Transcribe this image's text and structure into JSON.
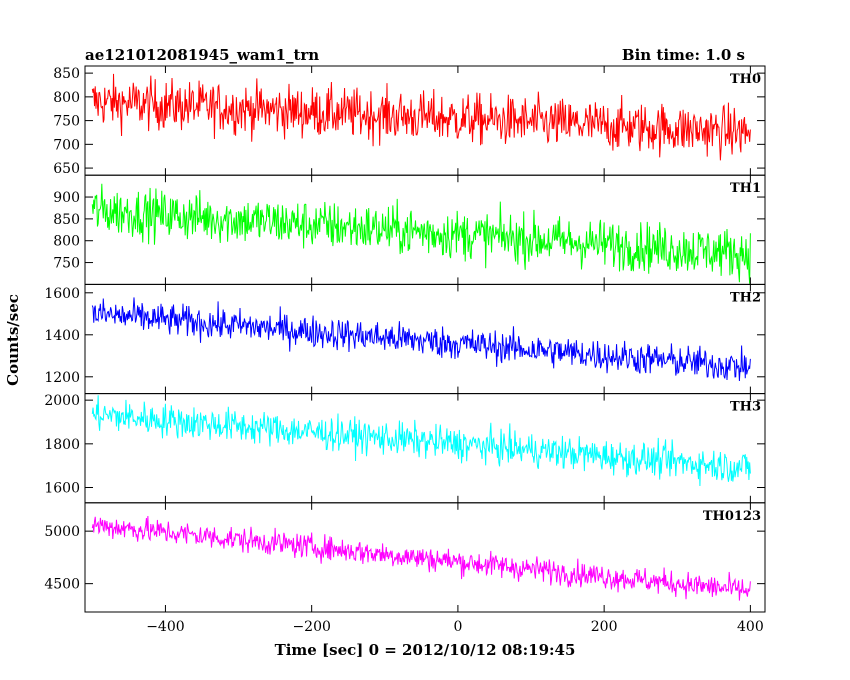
{
  "chart_data": {
    "type": "line",
    "title": "ae121012081945_wam1_trn",
    "subtitle": "Bin time: 1.0 s",
    "xlabel": "Time [sec] 0 = 2012/10/12 08:19:45",
    "ylabel": "Counts/sec",
    "xlim": [
      -510,
      420
    ],
    "x_ticks": [
      -400,
      -200,
      0,
      200,
      400
    ],
    "x_range": [
      -500,
      400
    ],
    "grid": false,
    "panels": [
      {
        "name": "TH0",
        "color": "#ff0000",
        "ylim": [
          635,
          865
        ],
        "y_ticks": [
          650,
          700,
          750,
          800,
          850
        ],
        "trend": {
          "start": 790,
          "end": 725
        },
        "noise_amplitude": 38
      },
      {
        "name": "TH1",
        "color": "#00ff00",
        "ylim": [
          700,
          950
        ],
        "y_ticks": [
          750,
          800,
          850,
          900
        ],
        "trend": {
          "start": 870,
          "end": 770
        },
        "noise_amplitude": 40
      },
      {
        "name": "TH2",
        "color": "#0000ff",
        "ylim": [
          1120,
          1640
        ],
        "y_ticks": [
          1200,
          1400,
          1600
        ],
        "trend": {
          "start": 1500,
          "end": 1245
        },
        "noise_amplitude": 55
      },
      {
        "name": "TH3",
        "color": "#00ffff",
        "ylim": [
          1530,
          2030
        ],
        "y_ticks": [
          1600,
          1800,
          2000
        ],
        "trend": {
          "start": 1935,
          "end": 1690
        },
        "noise_amplitude": 55
      },
      {
        "name": "TH0123",
        "color": "#ff00ff",
        "ylim": [
          4230,
          5270
        ],
        "y_ticks": [
          4500,
          5000
        ],
        "trend": {
          "start": 5060,
          "end": 4430
        },
        "noise_amplitude": 85
      }
    ]
  }
}
